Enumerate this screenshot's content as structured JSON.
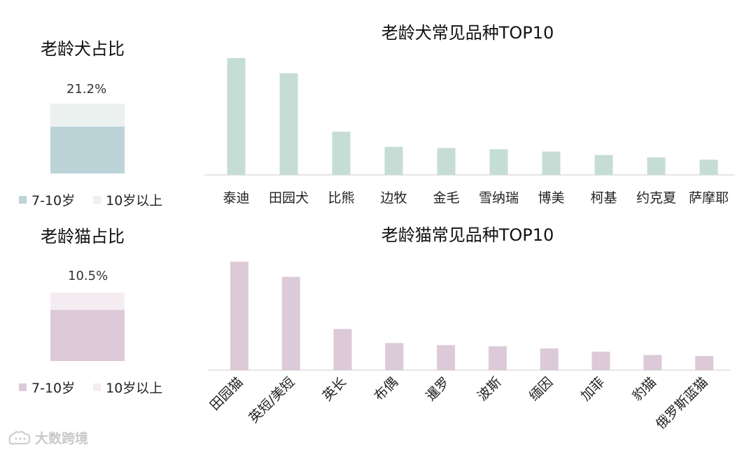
{
  "colors": {
    "dog_bar": "#c5ddd4",
    "dog_main": "#bcd3d8",
    "dog_rest": "#eaf1ef",
    "cat_bar": "#dccad9",
    "cat_main": "#dccad9",
    "cat_rest": "#f5ecf2",
    "axis": "#d6d6d6"
  },
  "dog_share": {
    "title": "老龄犬占比",
    "percent_label": "21.2%",
    "value": 21.2,
    "legend": [
      "7-10岁",
      "10岁以上"
    ]
  },
  "cat_share": {
    "title": "老龄猫占比",
    "percent_label": "10.5%",
    "value": 10.5,
    "legend": [
      "7-10岁",
      "10岁以上"
    ]
  },
  "watermark": {
    "text": "大数跨境",
    "icon": "brand-logo-icon"
  },
  "chart_data": [
    {
      "type": "bar",
      "title": "老龄犬常见品种TOP10",
      "categories": [
        "泰迪",
        "田园犬",
        "比熊",
        "边牧",
        "金毛",
        "雪纳瑞",
        "博美",
        "柯基",
        "约克夏",
        "萨摩耶"
      ],
      "values": [
        100,
        87,
        37,
        24,
        23,
        22,
        20,
        17,
        15,
        13
      ],
      "ylim": [
        0,
        100
      ],
      "grid": false,
      "legend": "none"
    },
    {
      "type": "bar",
      "title": "老龄猫常见品种TOP10",
      "categories": [
        "田园猫",
        "英短/美短",
        "英长",
        "布偶",
        "暹罗",
        "波斯",
        "缅因",
        "加菲",
        "豹猫",
        "俄罗斯蓝猫"
      ],
      "values": [
        100,
        86,
        38,
        25,
        23,
        22,
        20,
        17,
        14,
        13
      ],
      "ylim": [
        0,
        100
      ],
      "grid": false,
      "legend": "none"
    }
  ]
}
